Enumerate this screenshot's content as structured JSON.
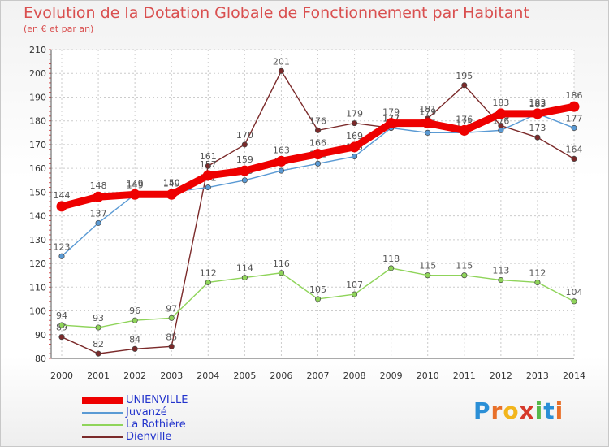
{
  "header": {
    "title": "Evolution de la Dotation Globale de Fonctionnement par Habitant",
    "subtitle": "(en € et par an)"
  },
  "logo": {
    "letters": [
      "P",
      "r",
      "o",
      "x",
      "i",
      "t",
      "i"
    ],
    "colors": [
      "#2b8fd6",
      "#e8702a",
      "#f2b51c",
      "#d63a2b",
      "#56b84a",
      "#2b8fd6",
      "#e8702a"
    ]
  },
  "chart_data": {
    "type": "line",
    "title": "Evolution de la Dotation Globale de Fonctionnement par Habitant",
    "ylabel": "(en € et par an)",
    "xlabel": "",
    "x": [
      2000,
      2001,
      2002,
      2003,
      2004,
      2005,
      2006,
      2007,
      2008,
      2009,
      2010,
      2011,
      2012,
      2013,
      2014
    ],
    "ylim": [
      80,
      210
    ],
    "yticks": [
      80,
      90,
      100,
      110,
      120,
      130,
      140,
      150,
      160,
      170,
      180,
      190,
      200,
      210
    ],
    "grid": true,
    "legend_position": "bottom-left",
    "series": [
      {
        "name": "Dienville",
        "color": "#7b2a2a",
        "values": [
          89,
          82,
          84,
          85,
          161,
          170,
          201,
          176,
          179,
          177,
          181,
          195,
          178,
          173,
          164
        ]
      },
      {
        "name": "La Rothière",
        "color": "#8fd45a",
        "values": [
          94,
          93,
          96,
          97,
          112,
          114,
          116,
          105,
          107,
          118,
          115,
          115,
          113,
          112,
          104
        ]
      },
      {
        "name": "Juvanzé",
        "color": "#5a9ad4",
        "values": [
          123,
          137,
          149,
          150,
          152,
          155,
          159,
          162,
          165,
          177,
          175,
          175,
          176,
          183,
          177
        ]
      },
      {
        "name": "UNIENVILLE",
        "color": "#ee0000",
        "values": [
          144,
          148,
          149,
          149,
          157,
          159,
          163,
          166,
          169,
          179,
          179,
          176,
          183,
          183,
          186
        ]
      }
    ]
  },
  "legend": [
    {
      "name": "UNIENVILLE",
      "color": "#ee0000"
    },
    {
      "name": "Juvanzé",
      "color": "#5a9ad4"
    },
    {
      "name": "La Rothière",
      "color": "#8fd45a"
    },
    {
      "name": "Dienville",
      "color": "#7b2a2a"
    }
  ]
}
